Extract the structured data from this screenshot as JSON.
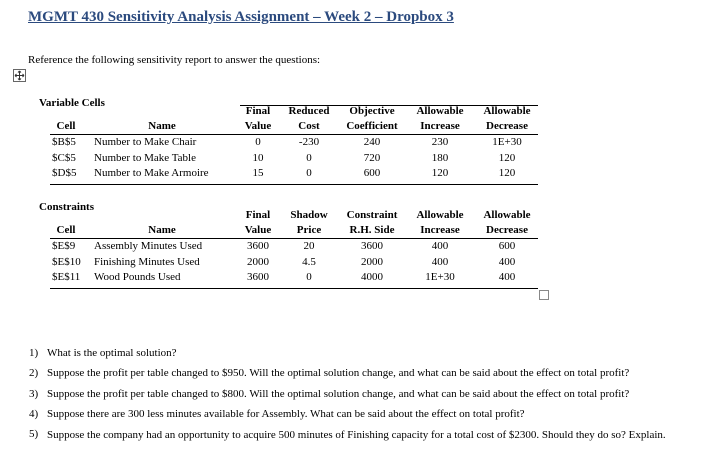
{
  "title": "MGMT 430 Sensitivity Analysis Assignment – Week 2 – Dropbox 3",
  "intro": "Reference the following sensitivity report to answer the questions:",
  "variable_cells": {
    "heading": "Variable Cells",
    "columns": [
      [
        "Cell"
      ],
      [
        "Name"
      ],
      [
        "Final",
        "Value"
      ],
      [
        "Reduced",
        "Cost"
      ],
      [
        "Objective",
        "Coefficient"
      ],
      [
        "Allowable",
        "Increase"
      ],
      [
        "Allowable",
        "Decrease"
      ]
    ],
    "rows": [
      [
        "$B$5",
        "Number to Make Chair",
        "0",
        "-230",
        "240",
        "230",
        "1E+30"
      ],
      [
        "$C$5",
        "Number to Make Table",
        "10",
        "0",
        "720",
        "180",
        "120"
      ],
      [
        "$D$5",
        "Number to Make Armoire",
        "15",
        "0",
        "600",
        "120",
        "120"
      ]
    ]
  },
  "constraints": {
    "heading": "Constraints",
    "columns": [
      [
        "Cell"
      ],
      [
        "Name"
      ],
      [
        "Final",
        "Value"
      ],
      [
        "Shadow",
        "Price"
      ],
      [
        "Constraint",
        "R.H. Side"
      ],
      [
        "Allowable",
        "Increase"
      ],
      [
        "Allowable",
        "Decrease"
      ]
    ],
    "rows": [
      [
        "$E$9",
        "Assembly Minutes Used",
        "3600",
        "20",
        "3600",
        "400",
        "600"
      ],
      [
        "$E$10",
        "Finishing Minutes Used",
        "2000",
        "4.5",
        "2000",
        "400",
        "400"
      ],
      [
        "$E$11",
        "Wood Pounds Used",
        "3600",
        "0",
        "4000",
        "1E+30",
        "400"
      ]
    ]
  },
  "questions": [
    {
      "number": "1)",
      "text": "What is the optimal solution?"
    },
    {
      "number": "2)",
      "text": "Suppose the profit per table changed to $950.  Will the optimal solution change, and what can be said about the effect on total profit?"
    },
    {
      "number": "3)",
      "text": "Suppose the profit per table changed to $800.  Will the optimal solution change, and what can be said about the effect on total profit?"
    },
    {
      "number": "4)",
      "text": "Suppose there are 300 less minutes available for Assembly.  What can be said about the effect on total profit?"
    },
    {
      "number": "5)",
      "text": "Suppose the company had an opportunity to acquire 500 minutes of Finishing capacity for a total cost of $2300.  Should they do so? Explain."
    }
  ]
}
